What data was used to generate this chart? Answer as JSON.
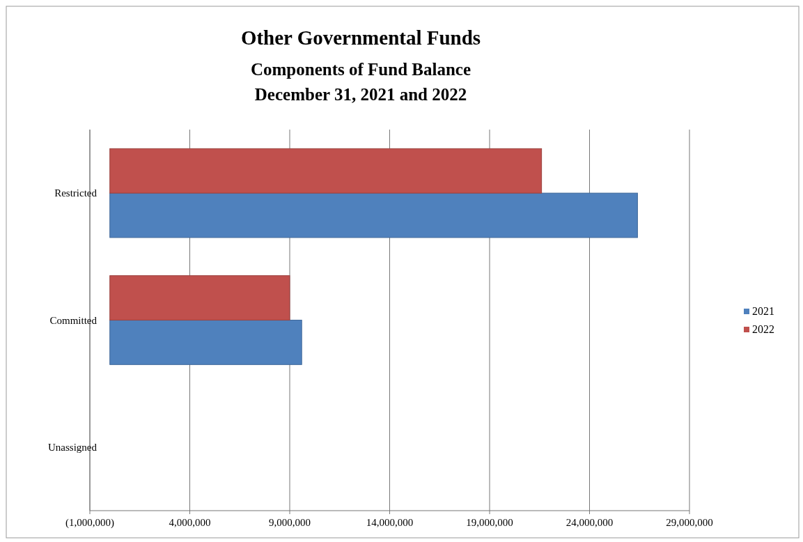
{
  "chart_data": {
    "type": "bar",
    "orientation": "horizontal",
    "title": "Other Governmental Funds",
    "subtitle": "Components of Fund Balance\nDecember 31, 2021 and 2022",
    "categories": [
      "Restricted",
      "Committed",
      "Unassigned"
    ],
    "series": [
      {
        "name": "2021",
        "color": "#4f81bd",
        "values": [
          26400000,
          9600000,
          0
        ]
      },
      {
        "name": "2022",
        "color": "#c0504d",
        "values": [
          21600000,
          9000000,
          0
        ]
      }
    ],
    "xlim": [
      -1000000,
      29000000
    ],
    "xticks": [
      {
        "value": -1000000,
        "label": "(1,000,000)"
      },
      {
        "value": 4000000,
        "label": "4,000,000"
      },
      {
        "value": 9000000,
        "label": "9,000,000"
      },
      {
        "value": 14000000,
        "label": "14,000,000"
      },
      {
        "value": 19000000,
        "label": "19,000,000"
      },
      {
        "value": 24000000,
        "label": "24,000,000"
      },
      {
        "value": 29000000,
        "label": "29,000,000"
      }
    ],
    "grid": "x",
    "legend": "right"
  }
}
